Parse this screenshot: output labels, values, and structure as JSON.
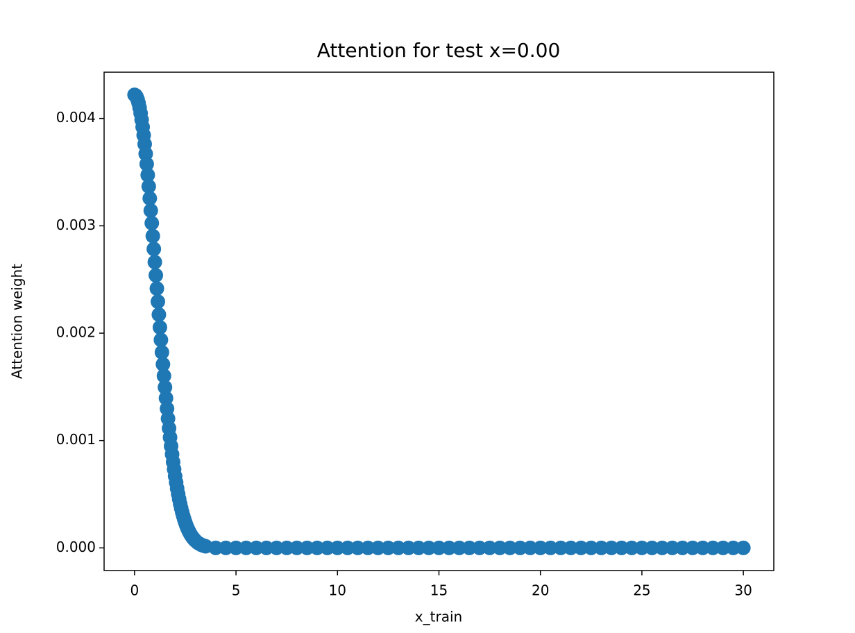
{
  "chart_data": {
    "type": "scatter",
    "title": "Attention for test x=0.00",
    "x_label": "x_train",
    "y_label": "Attention weight",
    "series": [
      {
        "color": "#1f77b4",
        "x": [
          0,
          0.05,
          0.1,
          0.15,
          0.2,
          0.25,
          0.3,
          0.35,
          0.4,
          0.45,
          0.5,
          0.55,
          0.6,
          0.65,
          0.7,
          0.75,
          0.8,
          0.85,
          0.9,
          0.95,
          1.0,
          1.05,
          1.1,
          1.15,
          1.2,
          1.25,
          1.3,
          1.35,
          1.4,
          1.45,
          1.5,
          1.55,
          1.6,
          1.65,
          1.7,
          1.75,
          1.8,
          1.85,
          1.9,
          1.95,
          2.0,
          2.05,
          2.1,
          2.15,
          2.2,
          2.25,
          2.3,
          2.35,
          2.4,
          2.45,
          2.5,
          2.55,
          2.6,
          2.65,
          2.7,
          2.75,
          2.8,
          2.85,
          2.9,
          2.95,
          3.0,
          3.1,
          3.2,
          3.3,
          3.4,
          3.5,
          4,
          4.5,
          5,
          5.5,
          6,
          6.5,
          7,
          7.5,
          8,
          8.5,
          9,
          9.5,
          10,
          10.5,
          11,
          11.5,
          12,
          12.5,
          13,
          13.5,
          14,
          14.5,
          15,
          15.5,
          16,
          16.5,
          17,
          17.5,
          18,
          18.5,
          19,
          19.5,
          20,
          20.5,
          21,
          21.5,
          22,
          22.5,
          23,
          23.5,
          24,
          24.5,
          25,
          25.5,
          26,
          26.5,
          27,
          27.5,
          28,
          28.5,
          29,
          29.5,
          30
        ],
        "values": [
          0.00422,
          0.004215,
          0.004201,
          0.004176,
          0.004143,
          0.0041,
          0.004049,
          0.003988,
          0.00392,
          0.003844,
          0.003761,
          0.003671,
          0.003575,
          0.003473,
          0.003367,
          0.003256,
          0.003142,
          0.003025,
          0.002905,
          0.002784,
          0.002662,
          0.002539,
          0.002416,
          0.002294,
          0.002173,
          0.002054,
          0.001937,
          0.001822,
          0.00171,
          0.001602,
          0.001496,
          0.001395,
          0.001297,
          0.001204,
          0.001114,
          0.001029,
          0.000948,
          0.000872,
          0.0008,
          0.000732,
          0.000668,
          0.000609,
          0.000553,
          0.000502,
          0.000454,
          0.000409,
          0.000369,
          0.000331,
          0.000297,
          0.000266,
          0.000237,
          0.000211,
          0.000187,
          0.000166,
          0.000147,
          0.000129,
          0.000114,
          0.0001,
          8.8e-05,
          7.7e-05,
          6.7e-05,
          5e-05,
          3.8e-05,
          2.8e-05,
          2.1e-05,
          1.5e-05,
          0,
          0,
          0,
          0,
          0,
          0,
          0,
          0,
          0,
          0,
          0,
          0,
          0,
          0,
          0,
          0,
          0,
          0,
          0,
          0,
          0,
          0,
          0,
          0,
          0,
          0,
          0,
          0,
          0,
          0,
          0,
          0,
          0,
          0,
          0,
          0,
          0,
          0,
          0,
          0,
          0,
          0,
          0,
          0,
          0,
          0,
          0,
          0,
          0,
          0,
          0,
          0,
          0
        ]
      }
    ],
    "xlim": [
      -1.5,
      31.5
    ],
    "xticks": [
      0,
      5,
      10,
      15,
      20,
      25,
      30
    ],
    "ylim": [
      -0.000211,
      0.004431
    ],
    "yticks": [
      {
        "value": 0,
        "label": "0.000"
      },
      {
        "value": 0.001,
        "label": "0.001"
      },
      {
        "value": 0.002,
        "label": "0.002"
      },
      {
        "value": 0.003,
        "label": "0.003"
      },
      {
        "value": 0.004,
        "label": "0.004"
      }
    ],
    "grid": false
  }
}
